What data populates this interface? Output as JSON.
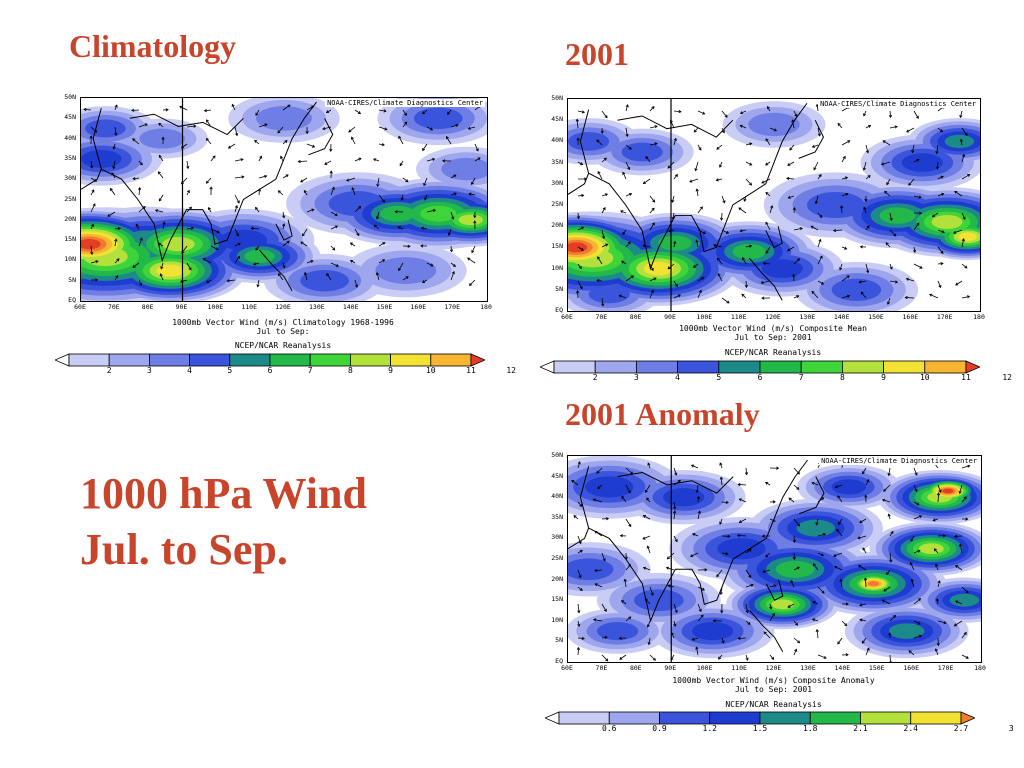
{
  "titles": {
    "climatology": "Climatology",
    "year": "2001",
    "anomaly": "2001 Anomaly",
    "main_line1": "1000 hPa Wind",
    "main_line2": "Jul. to Sep."
  },
  "colors": {
    "title": "#c8442a"
  },
  "lat_ticks": [
    "50N",
    "45N",
    "40N",
    "35N",
    "30N",
    "25N",
    "20N",
    "15N",
    "10N",
    "5N",
    "EQ"
  ],
  "lon_ticks": [
    "60E",
    "70E",
    "80E",
    "90E",
    "100E",
    "110E",
    "120E",
    "130E",
    "140E",
    "150E",
    "160E",
    "170E",
    "180"
  ],
  "panels": {
    "clim": {
      "credit": "NOAA-CIRES/Climate Diagnostics Center",
      "caption1": "1000mb Vector Wind (m/s) Climatology 1968-1996",
      "caption2": "Jul to Sep:",
      "caption3": "NCEP/NCAR Reanalysis",
      "scale": [
        "2",
        "3",
        "4",
        "5",
        "6",
        "7",
        "8",
        "9",
        "10",
        "11",
        "12"
      ]
    },
    "y2001": {
      "credit": "NOAA-CIRES/Climate Diagnostics Center",
      "caption1": "1000mb Vector Wind (m/s) Composite Mean",
      "caption2": "Jul to Sep: 2001",
      "caption3": "NCEP/NCAR Reanalysis",
      "scale": [
        "2",
        "3",
        "4",
        "5",
        "6",
        "7",
        "8",
        "9",
        "10",
        "11",
        "12"
      ]
    },
    "anom": {
      "credit": "NOAA-CIRES/Climate Diagnostics Center",
      "caption1": "1000mb Vector Wind (m/s) Composite Anomaly",
      "caption2": "Jul to Sep: 2001",
      "caption3": "NCEP/NCAR Reanalysis",
      "scale": [
        "0.6",
        "0.9",
        "1.2",
        "1.5",
        "1.8",
        "2.1",
        "2.4",
        "2.7",
        "3"
      ]
    }
  }
}
